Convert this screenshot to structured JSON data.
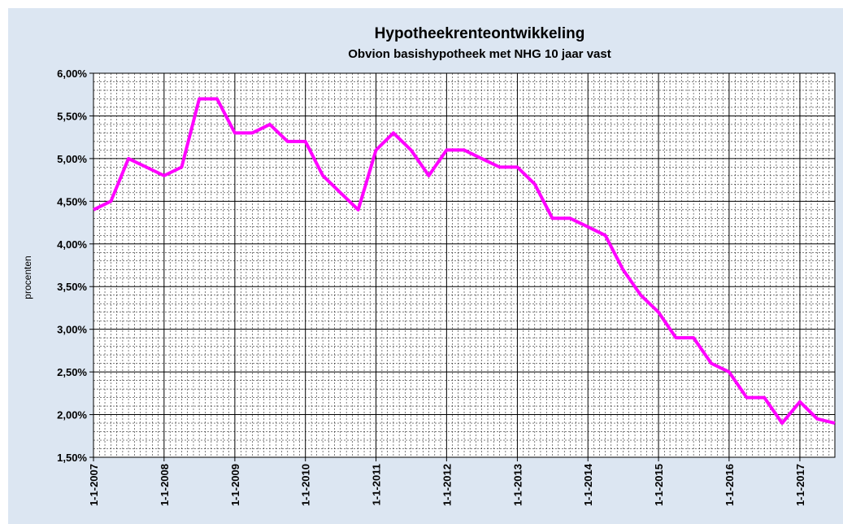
{
  "chart_data": {
    "type": "line",
    "title": "Hypotheekrenteontwikkeling",
    "subtitle": "Obvion basishypotheek met NHG 10 jaar vast",
    "y_label": "procenten",
    "x": [
      "2007-01-01",
      "2007-04-01",
      "2007-07-01",
      "2007-10-01",
      "2008-01-01",
      "2008-04-01",
      "2008-07-01",
      "2008-10-01",
      "2009-01-01",
      "2009-04-01",
      "2009-07-01",
      "2009-10-01",
      "2010-01-01",
      "2010-04-01",
      "2010-07-01",
      "2010-10-01",
      "2011-01-01",
      "2011-04-01",
      "2011-07-01",
      "2011-10-01",
      "2012-01-01",
      "2012-04-01",
      "2012-07-01",
      "2012-10-01",
      "2013-01-01",
      "2013-04-01",
      "2013-07-01",
      "2013-10-01",
      "2014-01-01",
      "2014-04-01",
      "2014-07-01",
      "2014-10-01",
      "2015-01-01",
      "2015-04-01",
      "2015-07-01",
      "2015-10-01",
      "2016-01-01",
      "2016-04-01",
      "2016-07-01",
      "2016-10-01",
      "2017-01-01",
      "2017-04-01",
      "2017-07-01"
    ],
    "series": [
      {
        "name": "Obvion basishypotheek met NHG 10 jaar vast",
        "color": "#ff00ff",
        "values": [
          4.4,
          4.5,
          5.0,
          4.9,
          4.8,
          4.9,
          5.7,
          5.7,
          5.3,
          5.3,
          5.4,
          5.2,
          5.2,
          4.8,
          4.6,
          4.4,
          5.1,
          5.3,
          5.1,
          4.8,
          5.1,
          5.1,
          5.0,
          4.9,
          4.9,
          4.7,
          4.3,
          4.3,
          4.2,
          4.1,
          3.7,
          3.4,
          3.2,
          2.9,
          2.9,
          2.6,
          2.5,
          2.2,
          2.2,
          1.9,
          2.15,
          1.95,
          1.9
        ]
      }
    ],
    "xlim": [
      "2007-01-01",
      "2017-07-01"
    ],
    "xticks": [
      {
        "value": "2007-01-01",
        "label": "1-1-2007"
      },
      {
        "value": "2008-01-01",
        "label": "1-1-2008"
      },
      {
        "value": "2009-01-01",
        "label": "1-1-2009"
      },
      {
        "value": "2010-01-01",
        "label": "1-1-2010"
      },
      {
        "value": "2011-01-01",
        "label": "1-1-2011"
      },
      {
        "value": "2012-01-01",
        "label": "1-1-2012"
      },
      {
        "value": "2013-01-01",
        "label": "1-1-2013"
      },
      {
        "value": "2014-01-01",
        "label": "1-1-2014"
      },
      {
        "value": "2015-01-01",
        "label": "1-1-2015"
      },
      {
        "value": "2016-01-01",
        "label": "1-1-2016"
      },
      {
        "value": "2017-01-01",
        "label": "1-1-2017"
      }
    ],
    "ylim": [
      1.5,
      6.0
    ],
    "yticks": [
      {
        "value": 1.5,
        "label": "1,50%"
      },
      {
        "value": 2.0,
        "label": "2,00%"
      },
      {
        "value": 2.5,
        "label": "2,50%"
      },
      {
        "value": 3.0,
        "label": "3,00%"
      },
      {
        "value": 3.5,
        "label": "3,50%"
      },
      {
        "value": 4.0,
        "label": "4,00%"
      },
      {
        "value": 4.5,
        "label": "4,50%"
      },
      {
        "value": 5.0,
        "label": "5,00%"
      },
      {
        "value": 5.5,
        "label": "5,50%"
      },
      {
        "value": 6.0,
        "label": "6,00%"
      }
    ],
    "grid": true
  }
}
